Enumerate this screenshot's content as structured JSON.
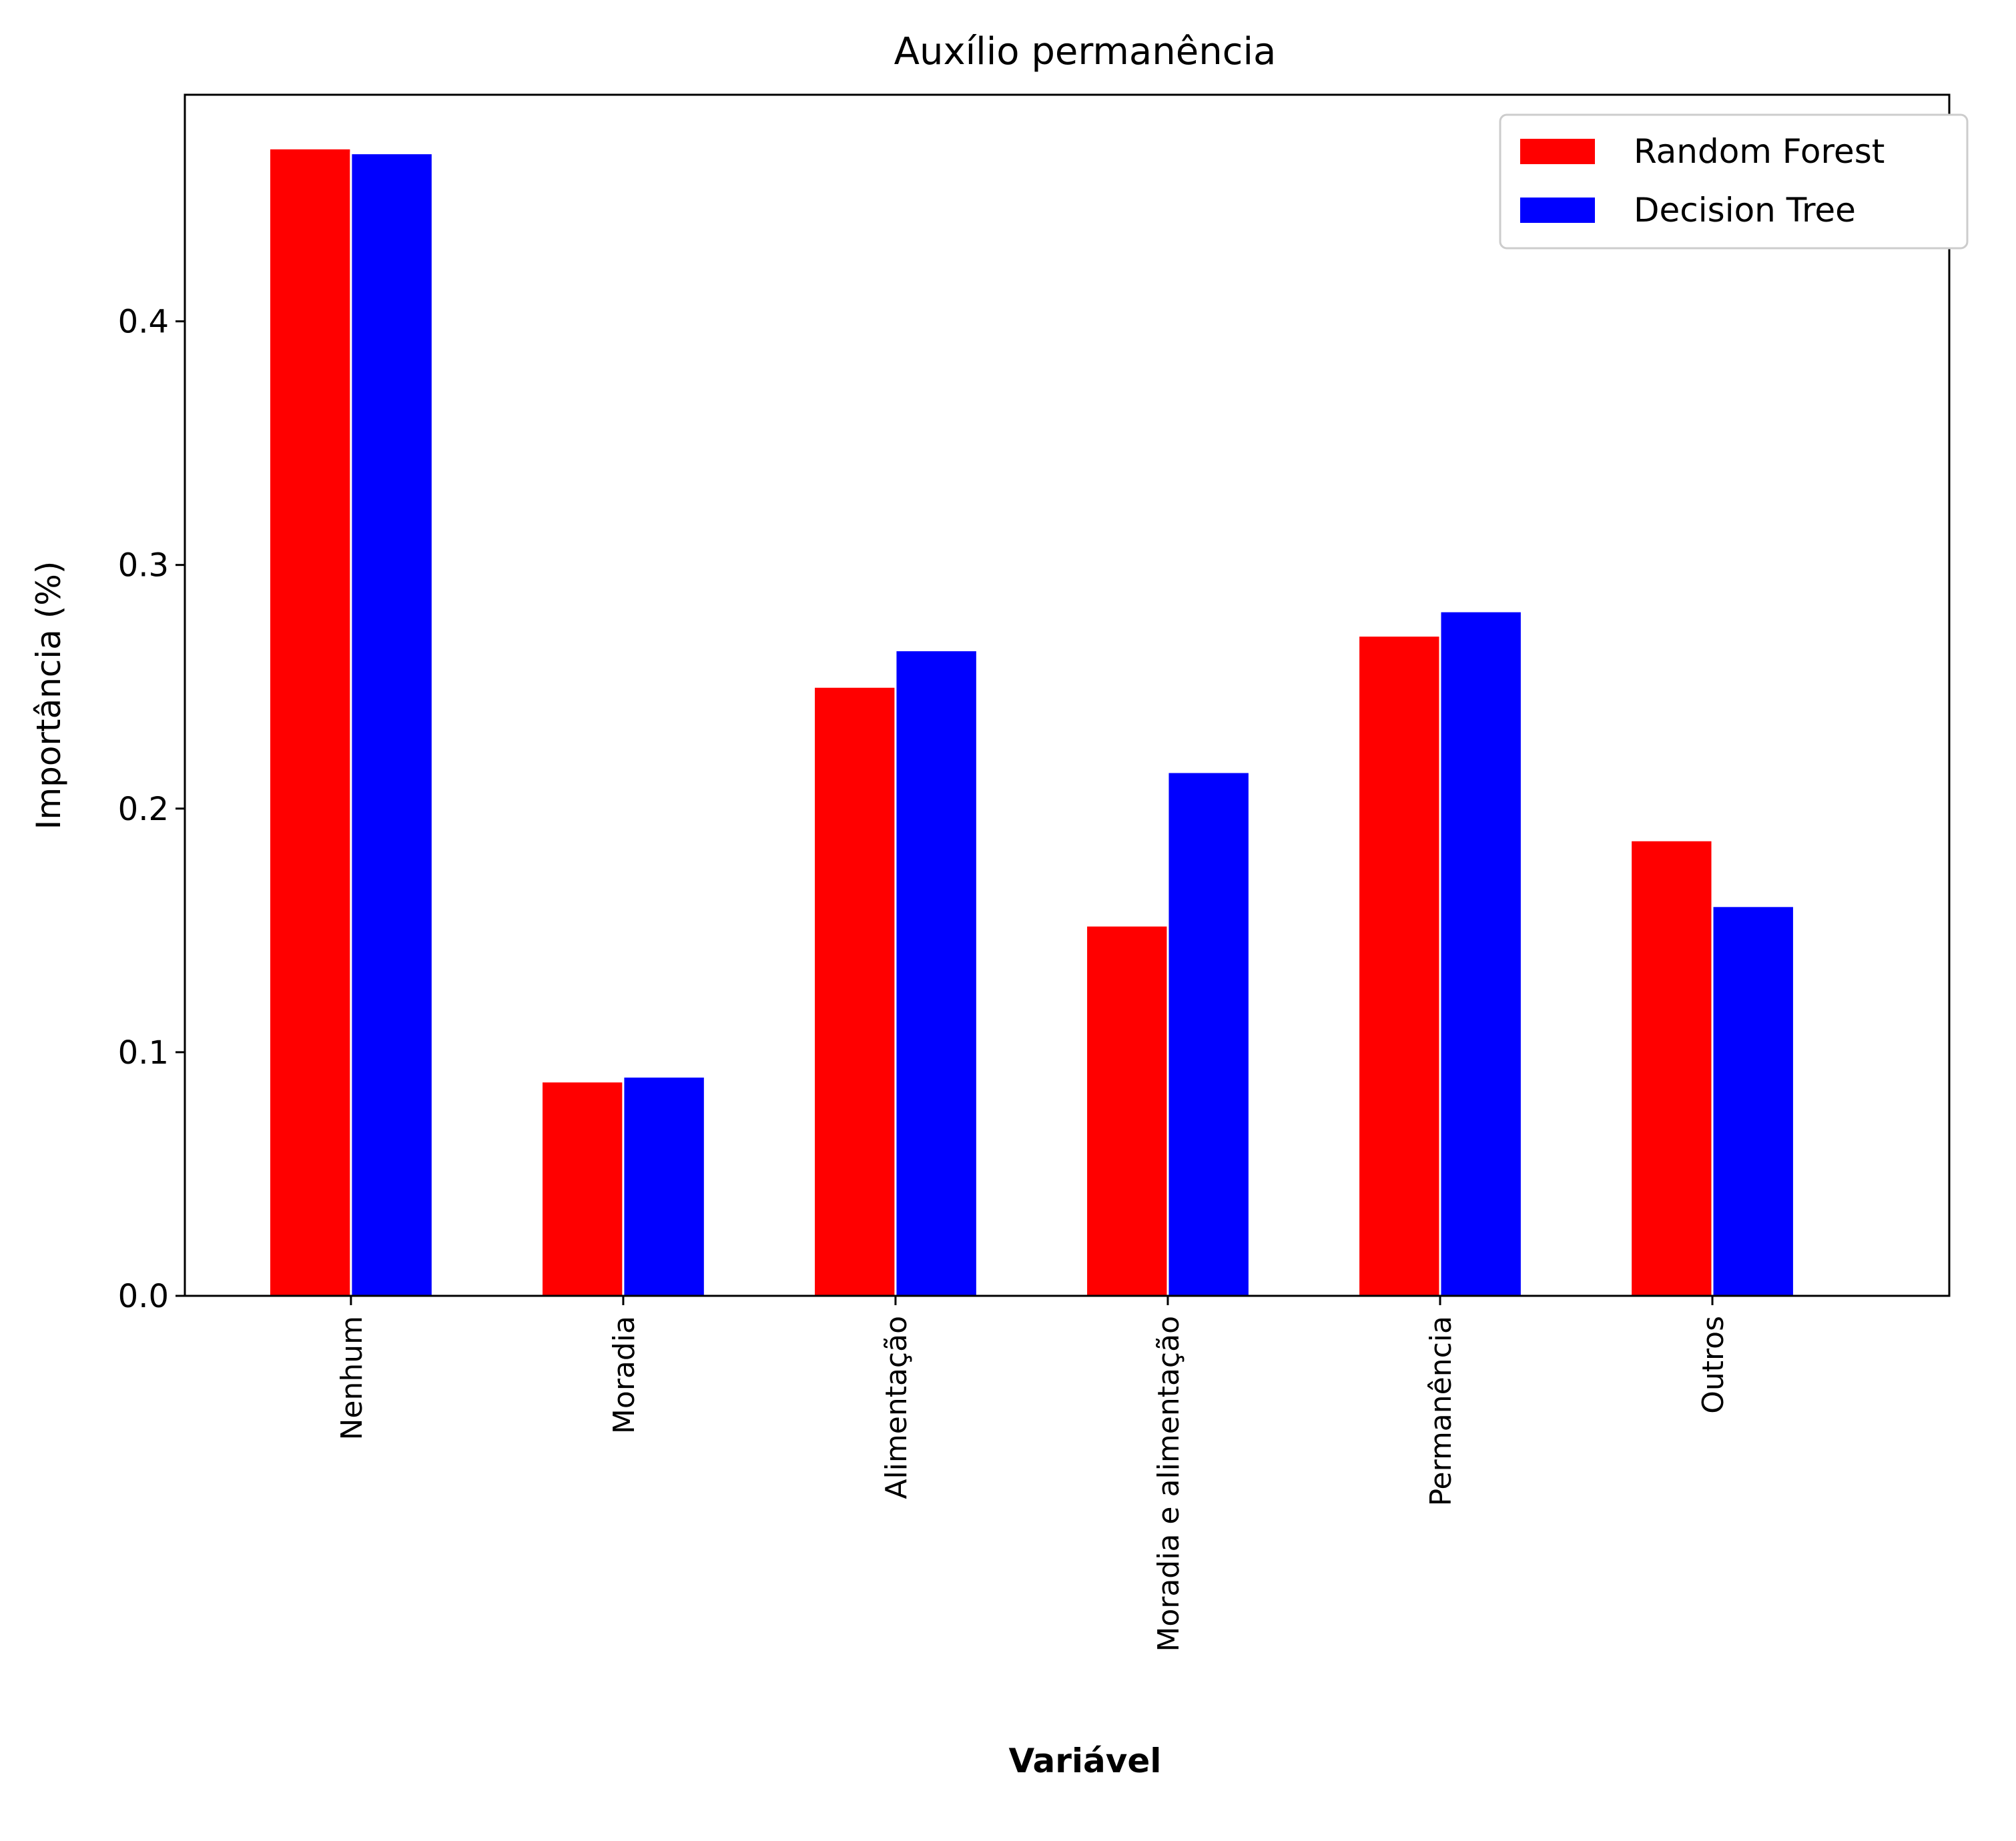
{
  "chart_data": {
    "type": "bar",
    "title": "Auxílio permanência",
    "xlabel": "Variável",
    "ylabel": "Importância (%)",
    "categories": [
      "Nenhum",
      "Moradia",
      "Alimentação",
      "Moradia e alimentação",
      "Permanência",
      "Outros"
    ],
    "series": [
      {
        "name": "Random Forest",
        "color": "#ff0000",
        "values": [
          0.471,
          0.088,
          0.25,
          0.152,
          0.271,
          0.187
        ]
      },
      {
        "name": "Decision Tree",
        "color": "#0000ff",
        "values": [
          0.469,
          0.09,
          0.265,
          0.215,
          0.281,
          0.16
        ]
      }
    ],
    "ylim": [
      0,
      0.493
    ],
    "yticks": [
      0.0,
      0.1,
      0.2,
      0.3,
      0.4
    ],
    "ytick_labels": [
      "0.0",
      "0.1",
      "0.2",
      "0.3",
      "0.4"
    ],
    "grid": false,
    "legend_position": "top-right"
  }
}
